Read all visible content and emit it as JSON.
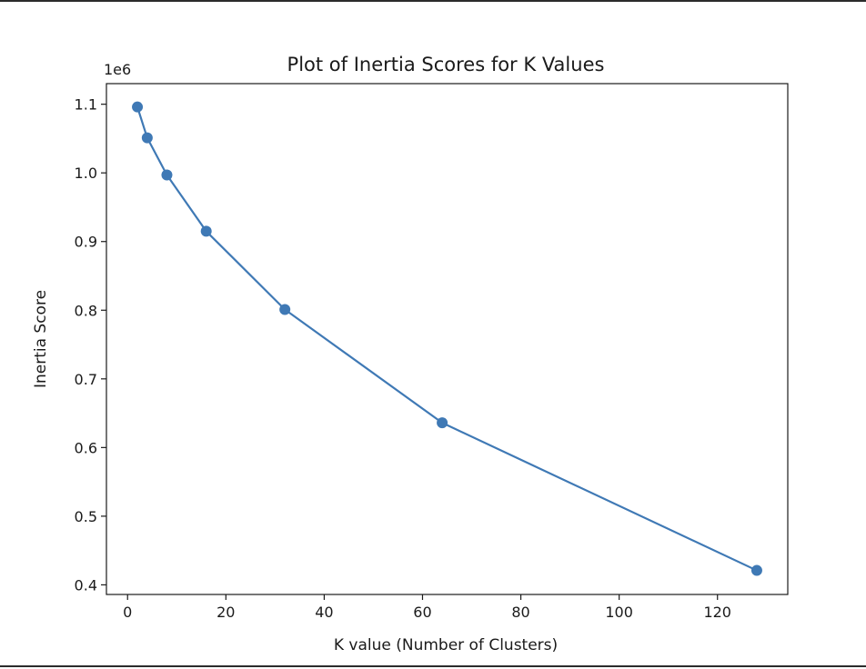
{
  "chart_data": {
    "type": "line",
    "title": "Plot of Inertia Scores for K Values",
    "xlabel": "K value (Number of Clusters)",
    "ylabel": "Inertia Score",
    "y_offset_label": "1e6",
    "xlim": [
      -4.3,
      134.3
    ],
    "ylim": [
      0.386,
      1.13
    ],
    "x_ticks": [
      0,
      20,
      40,
      60,
      80,
      100,
      120
    ],
    "x_tick_labels": [
      "0",
      "20",
      "40",
      "60",
      "80",
      "100",
      "120"
    ],
    "y_ticks": [
      0.4,
      0.5,
      0.6,
      0.7,
      0.8,
      0.9,
      1.0,
      1.1
    ],
    "y_tick_labels": [
      "0.4",
      "0.5",
      "0.6",
      "0.7",
      "0.8",
      "0.9",
      "1.0",
      "1.1"
    ],
    "grid": false,
    "series": [
      {
        "color": "#3f79b5",
        "marker": "circle",
        "x": [
          2,
          4,
          8,
          16,
          32,
          64,
          128
        ],
        "y": [
          1.096,
          1.051,
          0.997,
          0.915,
          0.801,
          0.636,
          0.421
        ]
      }
    ]
  }
}
